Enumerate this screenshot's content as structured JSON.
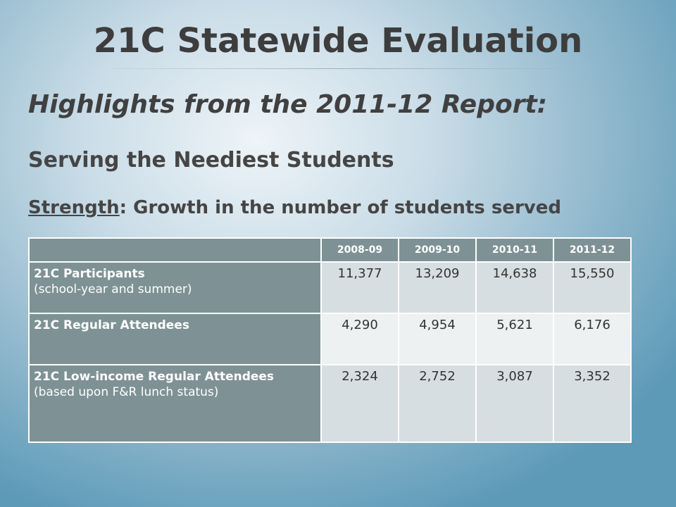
{
  "slide": {
    "title": "21C Statewide Evaluation",
    "subtitle": "Highlights from the 2011-12 Report:",
    "heading": "Serving the Neediest Students",
    "strength_label": "Strength",
    "strength_text": ": Growth in the number of students served"
  },
  "table": {
    "columns": [
      "2008-09",
      "2009-10",
      "2010-11",
      "2011-12"
    ],
    "rows": [
      {
        "label": "21C Participants",
        "sublabel": "(school-year and summer)",
        "values": [
          "11,377",
          "13,209",
          "14,638",
          "15,550"
        ]
      },
      {
        "label": "21C Regular Attendees",
        "sublabel": "",
        "values": [
          "4,290",
          "4,954",
          "5,621",
          "6,176"
        ]
      },
      {
        "label": "21C Low-income Regular Attendees",
        "sublabel": "(based upon F&R lunch status)",
        "values": [
          "2,324",
          "2,752",
          "3,087",
          "3,352"
        ]
      }
    ]
  }
}
